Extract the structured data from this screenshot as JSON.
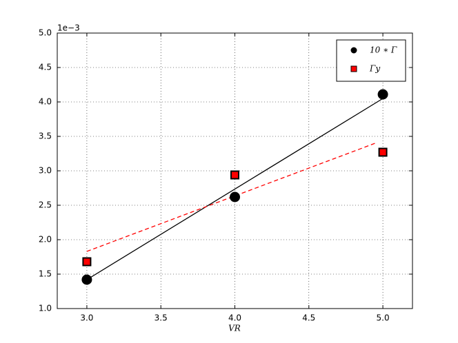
{
  "chart_data": {
    "type": "scatter",
    "xlabel": "VR",
    "y_offset_label": "1e−3",
    "xlim": [
      2.8,
      5.2
    ],
    "ylim": [
      0.001,
      0.005
    ],
    "xticks": [
      {
        "value": 3,
        "label": "3.0"
      },
      {
        "value": 3.5,
        "label": "3.5"
      },
      {
        "value": 4,
        "label": "4.0"
      },
      {
        "value": 4.5,
        "label": "4.5"
      },
      {
        "value": 5,
        "label": "5.0"
      }
    ],
    "yticks": [
      {
        "value": 0.001,
        "label": "1.0"
      },
      {
        "value": 0.0015,
        "label": "1.5"
      },
      {
        "value": 0.002,
        "label": "2.0"
      },
      {
        "value": 0.0025,
        "label": "2.5"
      },
      {
        "value": 0.003,
        "label": "3.0"
      },
      {
        "value": 0.0035,
        "label": "3.5"
      },
      {
        "value": 0.004,
        "label": "4.0"
      },
      {
        "value": 0.0045,
        "label": "4.5"
      },
      {
        "value": 0.005,
        "label": "5.0"
      }
    ],
    "grid": true,
    "legend": "upper right",
    "series": [
      {
        "name": "10 ∗ Γ̅",
        "color": "#000000",
        "marker": "circle",
        "x": [
          3,
          4,
          5
        ],
        "values": [
          0.00142,
          0.00262,
          0.00411
        ]
      },
      {
        "name": "Γ̅y",
        "color": "#ff0000",
        "marker": "square",
        "x": [
          3,
          4,
          5
        ],
        "values": [
          0.00168,
          0.00294,
          0.00327
        ]
      }
    ],
    "fit_lines": [
      {
        "color": "#000000",
        "style": "solid",
        "x": [
          3,
          5
        ],
        "values": [
          0.00142,
          0.00405
        ]
      },
      {
        "color": "#ff0000",
        "style": "dashed",
        "x": [
          3,
          4.96
        ],
        "values": [
          0.00183,
          0.00341
        ]
      }
    ]
  }
}
